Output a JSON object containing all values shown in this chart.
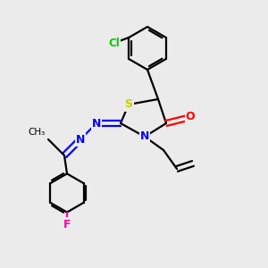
{
  "background_color": "#ebebeb",
  "bond_color": "#000000",
  "atom_colors": {
    "S": "#cccc00",
    "N": "#0000ff",
    "O": "#ff0000",
    "Cl": "#00cc00",
    "F": "#ff00aa",
    "C": "#000000"
  },
  "figsize": [
    3.0,
    3.0
  ],
  "dpi": 100
}
